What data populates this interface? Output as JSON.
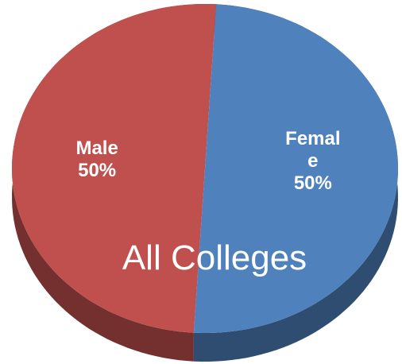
{
  "chart_data": {
    "type": "pie",
    "title": "All Colleges",
    "categories": [
      "Male",
      "Female"
    ],
    "values": [
      50,
      50
    ],
    "value_labels": [
      "50%",
      "50%"
    ],
    "colors": [
      "#c0504d",
      "#4f81bd"
    ]
  }
}
